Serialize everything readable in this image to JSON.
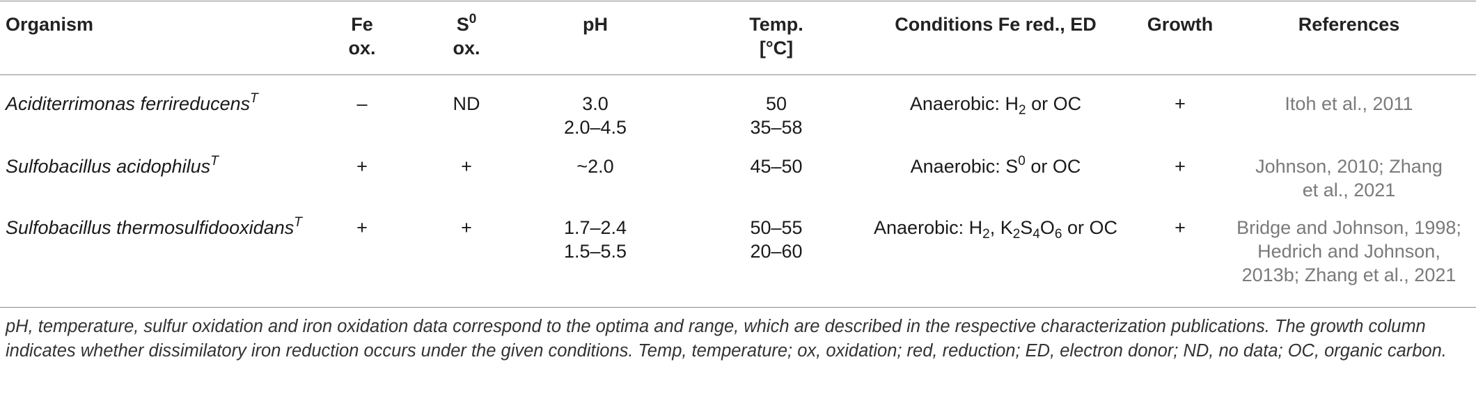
{
  "headers": {
    "organism": "Organism",
    "fe_ox_1": "Fe",
    "fe_ox_2": "ox.",
    "s_ox_base": "S",
    "s_ox_sup": "0",
    "s_ox_2": "ox.",
    "ph": "pH",
    "temp_1": "Temp.",
    "temp_2": "[°C]",
    "conditions": "Conditions Fe red., ED",
    "growth": "Growth",
    "references": "References"
  },
  "rows": [
    {
      "organism": "Aciditerrimonas ferrireducens",
      "organism_sup": "T",
      "fe_ox": "–",
      "s_ox": "ND",
      "ph_1": "3.0",
      "ph_2": "2.0–4.5",
      "temp_1": "50",
      "temp_2": "35–58",
      "cond_a": "Anaerobic: H",
      "cond_a_sub": "2",
      "cond_b": " or OC",
      "growth": "+",
      "ref_1": "Itoh et al., 2011"
    },
    {
      "organism": "Sulfobacillus acidophilus",
      "organism_sup": "T",
      "fe_ox": "+",
      "s_ox": "+",
      "ph_1": "~2.0",
      "temp_1": "45–50",
      "cond_a": "Anaerobic: S",
      "cond_a_sup": "0",
      "cond_b": " or OC",
      "growth": "+",
      "ref_1": "Johnson, 2010; Zhang",
      "ref_2": "et al., 2021"
    },
    {
      "organism": "Sulfobacillus thermosulfidooxidans",
      "organism_sup": "T",
      "fe_ox": "+",
      "s_ox": "+",
      "ph_1": "1.7–2.4",
      "ph_2": "1.5–5.5",
      "temp_1": "50–55",
      "temp_2": "20–60",
      "cond_a": "Anaerobic: H",
      "cond_a_sub": "2",
      "cond_k": ", K",
      "cond_k_sub": "2",
      "cond_s": "S",
      "cond_s_sub": "4",
      "cond_o": "O",
      "cond_o_sub": "6",
      "cond_b": " or OC",
      "growth": "+",
      "ref_1": "Bridge and Johnson, 1998;",
      "ref_2": "Hedrich and Johnson,",
      "ref_3": "2013b; Zhang et al., 2021"
    }
  ],
  "footnote": "pH, temperature, sulfur oxidation and iron oxidation data correspond to the optima and range, which are described in the respective characterization publications. The growth column indicates whether dissimilatory iron reduction occurs under the given conditions. Temp, temperature; ox, oxidation; red, reduction; ED, electron donor; ND, no data; OC, organic carbon."
}
